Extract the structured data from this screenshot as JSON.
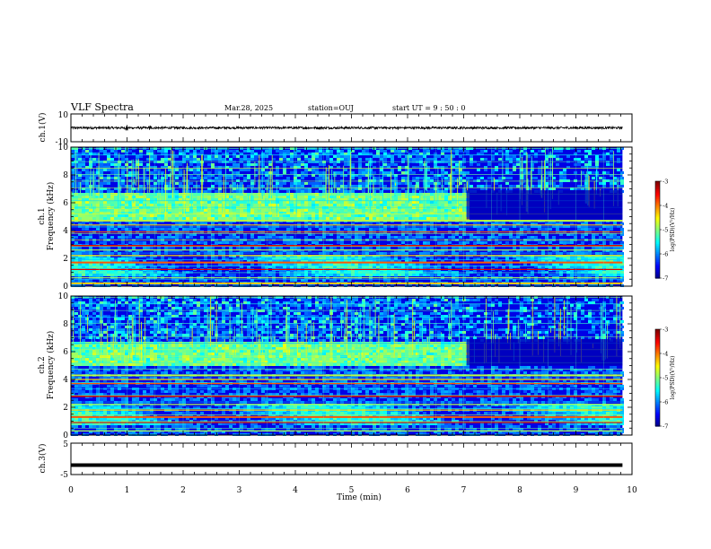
{
  "header": {
    "title": "VLF Spectra",
    "date": "Mar.28, 2025",
    "station": "station=OUJ",
    "start": "start UT =  9 : 50 : 0"
  },
  "chart_data": [
    {
      "type": "line",
      "panel": "ch.1 waveform",
      "ylabel": "ch.1(V)",
      "yticks": [
        "10",
        "-10"
      ],
      "ylim": [
        -10,
        10
      ],
      "xlim": [
        0,
        10
      ],
      "x_end_min": 9.83,
      "baseline": 0,
      "noise_amplitude": 0.8,
      "bursts": [
        {
          "x": 1.0,
          "amplitude": 2.5
        },
        {
          "x": 1.4,
          "amplitude": 1.5
        }
      ]
    },
    {
      "type": "heatmap",
      "panel": "ch.1 spectrogram",
      "ylabel_line1": "ch.1",
      "ylabel_line2": "Frequency (kHz)",
      "ylim": [
        0,
        10
      ],
      "yticks": [
        "0",
        "2",
        "4",
        "6",
        "8",
        "10"
      ],
      "xlim": [
        0,
        10
      ],
      "x_end_min": 9.83,
      "transition_min": 7.05,
      "emission_band_khz": [
        4.8,
        6.9
      ],
      "strong_lines_khz": [
        4.7,
        4.4,
        3.9,
        2.9,
        2.6,
        2.2,
        1.7,
        1.2,
        0.6,
        0.2
      ],
      "colorbar": {
        "label": "log(PSD)(V²/Hz)",
        "min": -7,
        "max": -3,
        "ticks": [
          "-3",
          "-4",
          "-5",
          "-6",
          "-7"
        ]
      }
    },
    {
      "type": "heatmap",
      "panel": "ch.2 spectrogram",
      "ylabel_line1": "ch.2",
      "ylabel_line2": "Frequency (kHz)",
      "ylim": [
        0,
        10
      ],
      "yticks": [
        "0",
        "2",
        "4",
        "6",
        "8",
        "10"
      ],
      "xlim": [
        0,
        10
      ],
      "x_end_min": 9.83,
      "transition_min": 7.05,
      "emission_band_khz": [
        5.0,
        6.9
      ],
      "strong_lines_khz": [
        4.3,
        4.0,
        3.7,
        2.8,
        2.2,
        1.8,
        1.3,
        0.9,
        0.3
      ],
      "colorbar": {
        "label": "log(PSD)(V²/Hz)",
        "min": -7,
        "max": -3,
        "ticks": [
          "-3",
          "-4",
          "-5",
          "-6",
          "-7"
        ]
      }
    },
    {
      "type": "line",
      "panel": "ch.3 waveform",
      "ylabel": "ch.3(V)",
      "yticks": [
        "5",
        "-5"
      ],
      "ylim": [
        -5,
        5
      ],
      "xlim": [
        0,
        10
      ],
      "x_end_min": 9.83,
      "baseline": -2
    }
  ],
  "xaxis": {
    "label": "Time (min)",
    "ticks": [
      "0",
      "1",
      "2",
      "3",
      "4",
      "5",
      "6",
      "7",
      "8",
      "9",
      "10"
    ]
  }
}
